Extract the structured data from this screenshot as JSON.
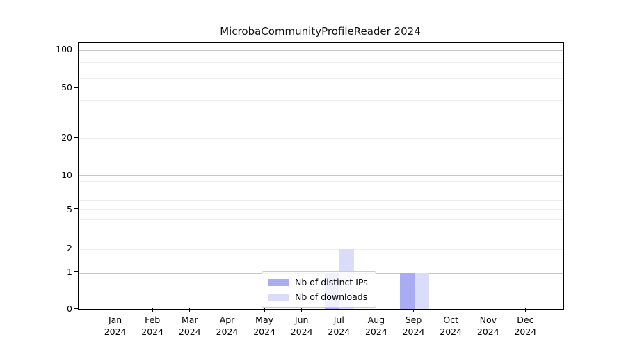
{
  "chart_data": {
    "type": "bar",
    "title": "MicrobaCommunityProfileReader 2024",
    "xlabel": "",
    "ylabel": "",
    "categories": [
      "Jan",
      "Feb",
      "Mar",
      "Apr",
      "May",
      "Jun",
      "Jul",
      "Aug",
      "Sep",
      "Oct",
      "Nov",
      "Dec"
    ],
    "x_axis": {
      "year": "2024"
    },
    "series": [
      {
        "name": "Nb of distinct IPs",
        "color": "#a9abf3",
        "values": [
          0,
          0,
          0,
          0,
          0,
          0,
          1,
          0,
          1,
          0,
          0,
          0
        ]
      },
      {
        "name": "Nb of downloads",
        "color": "#dbdcf9",
        "values": [
          0,
          0,
          0,
          0,
          0,
          0,
          2,
          0,
          1,
          0,
          0,
          0
        ]
      }
    ],
    "y_axis": {
      "ticks": [
        0,
        1,
        2,
        5,
        10,
        20,
        50,
        100
      ],
      "scale": "symlog-like",
      "ylim": [
        0,
        110
      ],
      "grid_major": [
        1,
        10,
        100
      ],
      "grid_minor": [
        2,
        3,
        4,
        5,
        6,
        7,
        8,
        9,
        20,
        30,
        40,
        50,
        60,
        70,
        80,
        90
      ],
      "anchors": [
        {
          "v": 0,
          "f": 1.0
        },
        {
          "v": 1,
          "f": 0.8627
        },
        {
          "v": 2,
          "f": 0.7741
        },
        {
          "v": 5,
          "f": 0.6257
        },
        {
          "v": 10,
          "f": 0.4985
        },
        {
          "v": 20,
          "f": 0.3565
        },
        {
          "v": 50,
          "f": 0.168
        },
        {
          "v": 100,
          "f": 0.0254
        }
      ]
    },
    "legend_position": "inside-bottom-center",
    "grid": true
  }
}
